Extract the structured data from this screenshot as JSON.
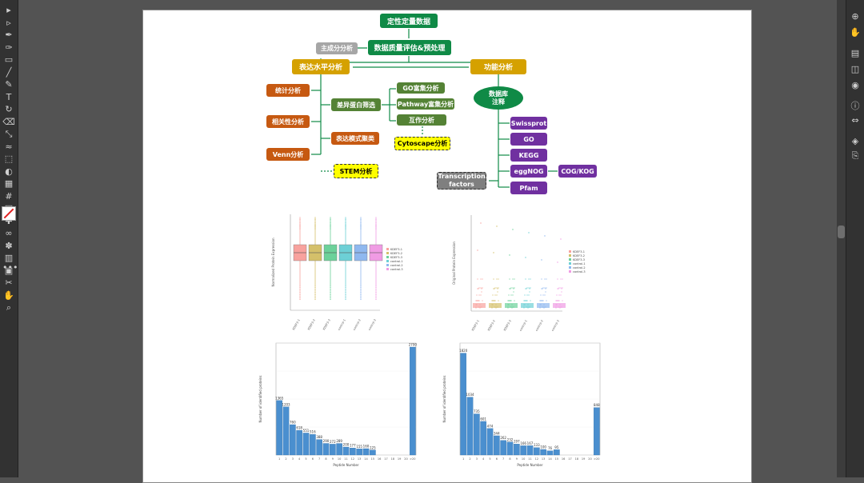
{
  "tools_left": [
    "selection-tool",
    "direct-selection-tool",
    "pen-tool",
    "curvature-tool",
    "rectangle-tool",
    "paintbrush-tool",
    "pencil-tool",
    "type-tool",
    "rotate-tool",
    "eraser-tool",
    "scale-tool",
    "width-tool",
    "free-transform-tool",
    "shape-builder-tool",
    "perspective-tool",
    "mesh-tool",
    "gradient-tool",
    "eyedropper-tool",
    "blend-tool",
    "symbol-sprayer-tool",
    "graph-tool",
    "artboard-tool",
    "slice-tool",
    "hand-tool",
    "zoom-tool"
  ],
  "tools_right": [
    "links-panel",
    "puppet-panel",
    "gradient-panel",
    "transparency-panel",
    "appearance-panel",
    "info-panel",
    "transform-panel",
    "layers-panel",
    "export-panel"
  ],
  "more_tools": "•••",
  "flowchart": {
    "root": "定性定量数据",
    "main_analysis": "主成分分析",
    "qc": "数据质量评估&预处理",
    "expr": "表达水平分析",
    "func": "功能分析",
    "stat": "统计分析",
    "corr": "相关性分析",
    "venn": "Venn分析",
    "diff": "差异蛋白筛选",
    "go": "GO富集分析",
    "pathway": "Pathway富集分析",
    "interact": "互作分析",
    "cytoscape": "Cytoscape分析",
    "cluster": "表达模式聚类",
    "stem": "STEM分析",
    "db_line1": "数据库",
    "db_line2": "注释",
    "swissprot": "Swissprot",
    "go_db": "GO",
    "kegg": "KEGG",
    "eggnog": "eggNOG",
    "cog": "COG/KOG",
    "pfam": "Pfam",
    "tf_line1": "Transcription",
    "tf_line2": "factors"
  },
  "box_legend": [
    "KDEF3-1",
    "KDEF3-2",
    "KDEF3-3",
    "control-1",
    "control-2",
    "control-3"
  ],
  "box_colors": [
    "#f8a29e",
    "#d4c06a",
    "#6cd19a",
    "#6dd0d6",
    "#8fb8ef",
    "#f09be4"
  ],
  "box_ylabel": "Normalized Protein Expression",
  "strip_ylabel": "Original Protein Expression",
  "bar_ylabel": "Number of identified proteins",
  "bar_xlabel": "Peptide Number",
  "chart_data": [
    {
      "type": "bar",
      "categories": [
        "1",
        "2",
        "3",
        "4",
        "5",
        "6",
        "7",
        "8",
        "9",
        "10",
        "11",
        "12",
        "13",
        "14",
        "15",
        "16",
        "17",
        "18",
        "19",
        "20",
        ">20"
      ],
      "values": [
        1365,
        1203,
        760,
        618,
        551,
        516,
        388,
        290,
        272,
        289,
        200,
        177,
        155,
        160,
        125,
        null,
        null,
        null,
        null,
        null,
        2700
      ],
      "labels": [
        "1365",
        "1203",
        "760",
        "618",
        "551",
        "516",
        "388",
        "290",
        "272",
        "289",
        "200",
        "177",
        "155",
        "160",
        "125",
        "",
        "",
        "",
        "",
        "",
        "2700"
      ],
      "xlabel": "Peptide Number",
      "ylabel": "Number of identified proteins",
      "ylim": [
        0,
        2800
      ]
    },
    {
      "type": "bar",
      "categories": [
        "1",
        "2",
        "3",
        "4",
        "5",
        "6",
        "7",
        "8",
        "9",
        "10",
        "11",
        "12",
        "13",
        "14",
        "15",
        "16",
        "17",
        "18",
        "19",
        "20",
        ">20"
      ],
      "values": [
        1820,
        1034,
        735,
        601,
        474,
        344,
        262,
        232,
        197,
        166,
        167,
        133,
        100,
        76,
        95,
        null,
        null,
        null,
        null,
        null,
        848
      ],
      "labels": [
        "1820",
        "1034",
        "735",
        "601",
        "474",
        "344",
        "262",
        "232",
        "197",
        "166",
        "167",
        "133",
        "100",
        "76",
        "95",
        "",
        "",
        "",
        "",
        "",
        "848"
      ],
      "xlabel": "Peptide Number",
      "ylabel": "Number of identified proteins",
      "ylim": [
        0,
        2000
      ]
    }
  ]
}
